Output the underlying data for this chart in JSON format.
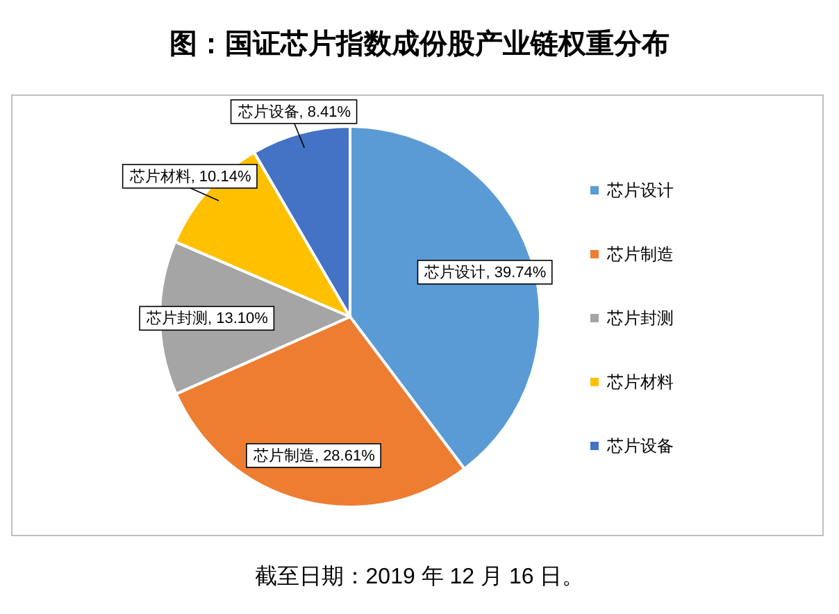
{
  "chart_data": {
    "type": "pie",
    "title": "图：国证芯片指数成份股产业链权重分布",
    "categories": [
      "芯片设计",
      "芯片制造",
      "芯片封测",
      "芯片材料",
      "芯片设备"
    ],
    "values": [
      39.74,
      28.61,
      13.1,
      10.14,
      8.41
    ],
    "colors": [
      "#5b9bd5",
      "#ed7d31",
      "#a5a5a5",
      "#ffc000",
      "#4472c4"
    ],
    "value_labels": [
      "芯片设计, 39.74%",
      "芯片制造, 28.61%",
      "芯片封测, 13.10%",
      "芯片材料, 10.14%",
      "芯片设备, 8.41%"
    ],
    "legend": "right",
    "annotations": [
      "截至日期：2019 年 12 月 16 日。"
    ]
  }
}
